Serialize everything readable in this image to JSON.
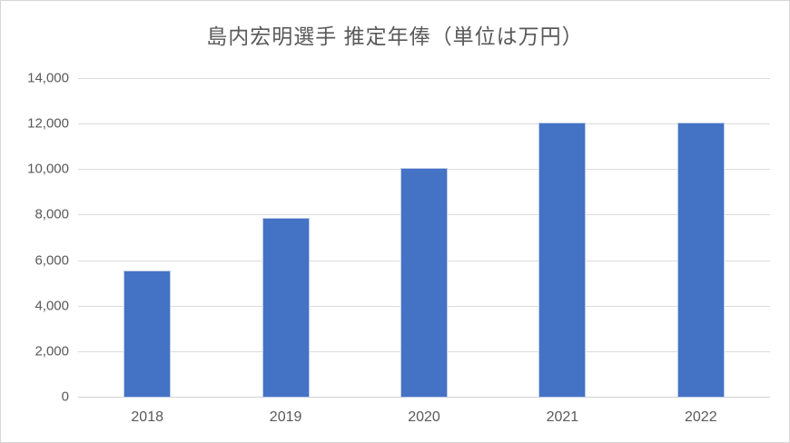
{
  "chart_data": {
    "type": "bar",
    "title": "島内宏明選手 推定年俸（単位は万円）",
    "categories": [
      "2018",
      "2019",
      "2020",
      "2021",
      "2022"
    ],
    "values": [
      5500,
      7800,
      10000,
      12000,
      12000
    ],
    "xlabel": "",
    "ylabel": "",
    "ylim": [
      0,
      14000
    ],
    "ytick_step": 2000,
    "ytick_labels": [
      "0",
      "2,000",
      "4,000",
      "6,000",
      "8,000",
      "10,000",
      "12,000",
      "14,000"
    ],
    "grid": "horizontal",
    "legend": "none",
    "bar_color": "#4472c4",
    "gridline_color": "#dcdcdc",
    "text_color": "#595959"
  }
}
